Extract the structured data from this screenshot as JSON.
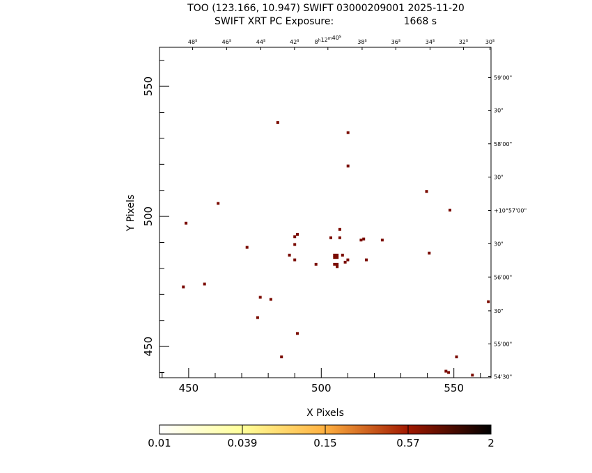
{
  "chart_data": {
    "type": "scatter",
    "title_line1": "TOO (123.166, 10.947) SWIFT 03000209001 2025-11-20",
    "title_line2_label": "SWIFT XRT PC Exposure:",
    "title_line2_value": "1668 s",
    "xlabel": "X Pixels",
    "ylabel": "Y Pixels",
    "xlim": [
      439,
      564
    ],
    "ylim": [
      438,
      565
    ],
    "x_ticks": [
      {
        "value": 450,
        "label": "450"
      },
      {
        "value": 500,
        "label": "500"
      },
      {
        "value": 550,
        "label": "550"
      }
    ],
    "y_ticks": [
      {
        "value": 450,
        "label": "450"
      },
      {
        "value": 500,
        "label": "500"
      },
      {
        "value": 550,
        "label": "550"
      }
    ],
    "ra_ticks": [
      {
        "x": 451.5,
        "h": "",
        "m": "",
        "s": "48",
        "sub": "s"
      },
      {
        "x": 464.3,
        "h": "",
        "m": "",
        "s": "46",
        "sub": "s"
      },
      {
        "x": 477.2,
        "h": "",
        "m": "",
        "s": "44",
        "sub": "s"
      },
      {
        "x": 489.9,
        "h": "",
        "m": "",
        "s": "42",
        "sub": "s"
      },
      {
        "x": 502.5,
        "h": "8",
        "m": "12",
        "s": "40",
        "sub": "s"
      },
      {
        "x": 515.4,
        "h": "",
        "m": "",
        "s": "38",
        "sub": "s"
      },
      {
        "x": 528.1,
        "h": "",
        "m": "",
        "s": "36",
        "sub": "s"
      },
      {
        "x": 541.0,
        "h": "",
        "m": "",
        "s": "34",
        "sub": "s"
      },
      {
        "x": 553.6,
        "h": "",
        "m": "",
        "s": "32",
        "sub": "s"
      },
      {
        "x": 563.6,
        "h": "",
        "m": "",
        "s": "30",
        "sub": "s"
      }
    ],
    "dec_ticks": [
      {
        "y": 553.4,
        "label": "59'00\""
      },
      {
        "y": 540.8,
        "label": "30\""
      },
      {
        "y": 527.9,
        "label": "58'00\""
      },
      {
        "y": 515.1,
        "label": "30\""
      },
      {
        "y": 502.3,
        "label": "+10°57'00\""
      },
      {
        "y": 489.5,
        "label": "30\""
      },
      {
        "y": 476.7,
        "label": "56'00\""
      },
      {
        "y": 463.7,
        "label": "30\""
      },
      {
        "y": 451.0,
        "label": "55'00\""
      },
      {
        "y": 438.4,
        "label": "54'30\""
      }
    ],
    "colorbar": {
      "scale": "log",
      "tick_labels": [
        "0.01",
        "0.039",
        "0.15",
        "0.57",
        "2"
      ],
      "colors": [
        "#ffffff",
        "#ffff99",
        "#ffb040",
        "#a01800",
        "#000000"
      ]
    },
    "points": [
      [
        483.6,
        536.1
      ],
      [
        510.1,
        532.2
      ],
      [
        510.1,
        519.4
      ],
      [
        461.1,
        505.0
      ],
      [
        539.7,
        509.6
      ],
      [
        548.5,
        502.4
      ],
      [
        449.0,
        497.4
      ],
      [
        507.0,
        495.0
      ],
      [
        491.0,
        493.1
      ],
      [
        490.0,
        492.2
      ],
      [
        503.6,
        491.8
      ],
      [
        507.0,
        491.8
      ],
      [
        515.0,
        490.9
      ],
      [
        516.0,
        491.3
      ],
      [
        523.0,
        490.9
      ],
      [
        490.0,
        489.2
      ],
      [
        472.0,
        488.1
      ],
      [
        488.0,
        485.1
      ],
      [
        505.0,
        485.1
      ],
      [
        506.0,
        485.1
      ],
      [
        508.0,
        485.1
      ],
      [
        540.7,
        485.9
      ],
      [
        505.0,
        484.2
      ],
      [
        506.0,
        484.2
      ],
      [
        490.0,
        483.3
      ],
      [
        510.0,
        483.3
      ],
      [
        517.0,
        483.3
      ],
      [
        509.0,
        482.4
      ],
      [
        505.0,
        481.6
      ],
      [
        506.0,
        481.6
      ],
      [
        498.0,
        481.6
      ],
      [
        506.0,
        480.7
      ],
      [
        456.0,
        474.0
      ],
      [
        448.0,
        472.9
      ],
      [
        477.0,
        468.9
      ],
      [
        481.0,
        468.1
      ],
      [
        563.0,
        467.2
      ],
      [
        476.0,
        461.1
      ],
      [
        491.0,
        455.0
      ],
      [
        485.0,
        446.0
      ],
      [
        551.0,
        446.0
      ],
      [
        547.0,
        440.5
      ],
      [
        548.0,
        440.0
      ],
      [
        557.0,
        439.0
      ]
    ]
  }
}
